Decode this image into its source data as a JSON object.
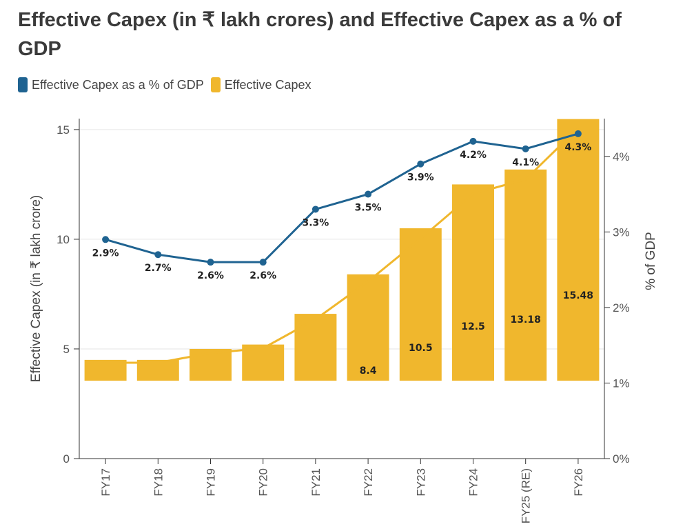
{
  "title": "Effective Capex (in ₹ lakh crores) and Effective Capex as a % of GDP",
  "legend": [
    {
      "label": "Effective Capex as a % of GDP",
      "color": "#1f6391"
    },
    {
      "label": "Effective Capex",
      "color": "#f0b72d"
    }
  ],
  "chart_data": {
    "type": "bar",
    "title": "Effective Capex (in ₹ lakh crores) and Effective Capex as a % of GDP",
    "categories": [
      "FY17",
      "FY18",
      "FY19",
      "FY20",
      "FY21",
      "FY22",
      "FY23",
      "FY24",
      "FY25 (RE)",
      "FY26"
    ],
    "series": [
      {
        "name": "Effective Capex",
        "type": "bar",
        "axis": "left",
        "color": "#f0b72d",
        "values": [
          4.5,
          4.5,
          5.0,
          5.2,
          6.6,
          8.4,
          10.5,
          12.5,
          13.18,
          15.48
        ],
        "labels": [
          "",
          "",
          "",
          "",
          "",
          "8.4",
          "10.5",
          "12.5",
          "13.18",
          "15.48"
        ]
      },
      {
        "name": "Effective Capex as a % of GDP",
        "type": "line",
        "axis": "right",
        "color": "#1f6391",
        "values": [
          2.9,
          2.7,
          2.6,
          2.6,
          3.3,
          3.5,
          3.9,
          4.2,
          4.1,
          4.3
        ],
        "labels": [
          "2.9%",
          "2.7%",
          "2.6%",
          "2.6%",
          "3.3%",
          "3.5%",
          "3.9%",
          "4.2%",
          "4.1%",
          "4.3%"
        ]
      }
    ],
    "trend_line": {
      "color": "#f0b72d",
      "values": [
        4.5,
        4.5,
        5.0,
        5.2,
        6.6,
        8.4,
        10.5,
        12.5,
        13.18,
        15.48
      ]
    },
    "ylabel": "Effective Capex (in ₹ lakh crore)",
    "ylim": [
      0,
      15.5
    ],
    "yticks": [
      0,
      5,
      10,
      15
    ],
    "y2label": "% of GDP",
    "y2lim": [
      0,
      4.5
    ],
    "y2ticks": [
      "0%",
      "1%",
      "2%",
      "3%",
      "4%"
    ],
    "grid": true,
    "legend_position": "top-left"
  }
}
